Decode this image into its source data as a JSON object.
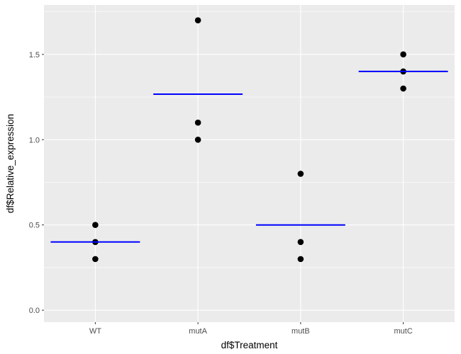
{
  "chart_data": {
    "type": "scatter",
    "xlabel": "df$Treatment",
    "ylabel": "df$Relative_expression",
    "categories": [
      "WT",
      "mutA",
      "mutB",
      "mutC"
    ],
    "ylim": [
      -0.07,
      1.79
    ],
    "yticks": [
      0.0,
      0.5,
      1.0,
      1.5
    ],
    "ytick_labels": [
      "0.0",
      "0.5",
      "1.0",
      "1.5"
    ],
    "grid": true,
    "legend": "none",
    "points": [
      {
        "x": "WT",
        "y": 0.5
      },
      {
        "x": "WT",
        "y": 0.4
      },
      {
        "x": "WT",
        "y": 0.3
      },
      {
        "x": "mutA",
        "y": 1.7
      },
      {
        "x": "mutA",
        "y": 1.1
      },
      {
        "x": "mutA",
        "y": 1.0
      },
      {
        "x": "mutB",
        "y": 0.8
      },
      {
        "x": "mutB",
        "y": 0.4
      },
      {
        "x": "mutB",
        "y": 0.3
      },
      {
        "x": "mutC",
        "y": 1.5
      },
      {
        "x": "mutC",
        "y": 1.4
      },
      {
        "x": "mutC",
        "y": 1.3
      }
    ],
    "means": [
      {
        "x": "WT",
        "y": 0.4
      },
      {
        "x": "mutA",
        "y": 1.267
      },
      {
        "x": "mutB",
        "y": 0.5
      },
      {
        "x": "mutC",
        "y": 1.4
      }
    ],
    "colors": {
      "panel": "#ebebeb",
      "grid_major": "#ffffff",
      "point": "#000000",
      "mean_line": "#0000ff"
    }
  }
}
